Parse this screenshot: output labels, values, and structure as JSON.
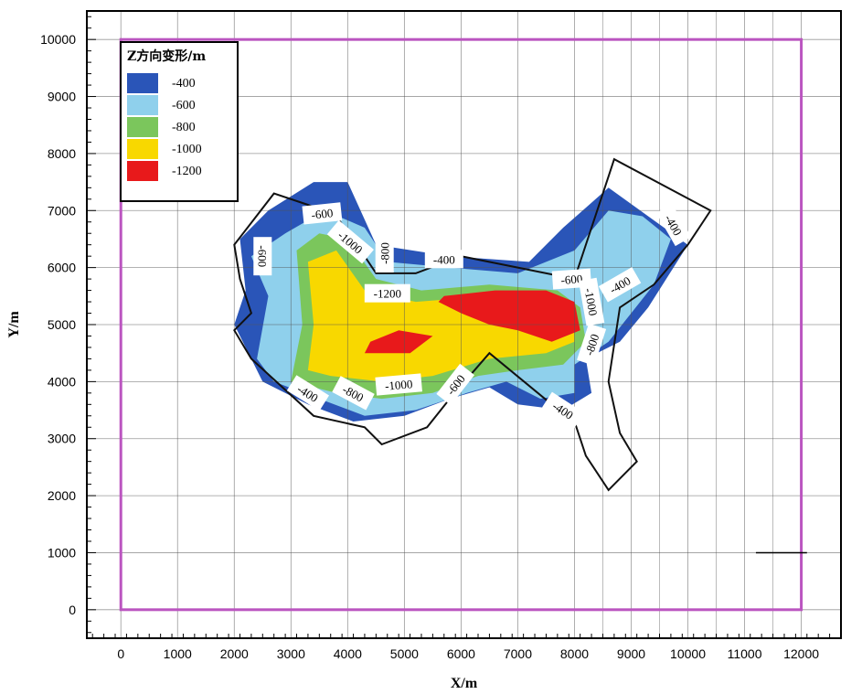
{
  "chart_data": {
    "type": "contour",
    "xlabel": "X/m",
    "ylabel": "Y/m",
    "xlim": [
      -600,
      12700
    ],
    "ylim": [
      -500,
      10500
    ],
    "xticks": [
      0,
      1000,
      2000,
      3000,
      4000,
      5000,
      6000,
      7000,
      8000,
      9000,
      10000,
      11000,
      12000
    ],
    "yticks": [
      0,
      1000,
      2000,
      3000,
      4000,
      5000,
      6000,
      7000,
      8000,
      9000,
      10000
    ],
    "grid": true,
    "legend": {
      "title": "Z方向变形/m",
      "position": "top-left",
      "entries": [
        {
          "label": "-400",
          "color": "#2a55b8"
        },
        {
          "label": "-600",
          "color": "#8fd0ec"
        },
        {
          "label": "-800",
          "color": "#7bc65c"
        },
        {
          "label": "-1000",
          "color": "#f8d800"
        },
        {
          "label": "-1200",
          "color": "#e8191b"
        }
      ]
    },
    "boundary_rect": {
      "x": [
        0,
        12000
      ],
      "y": [
        0,
        10000
      ],
      "color": "#bb55c0"
    },
    "outline_polygon": [
      [
        2000,
        4900
      ],
      [
        2300,
        5200
      ],
      [
        2100,
        5800
      ],
      [
        2000,
        6400
      ],
      [
        2700,
        7300
      ],
      [
        3300,
        7100
      ],
      [
        3800,
        6900
      ],
      [
        4300,
        6200
      ],
      [
        4500,
        5900
      ],
      [
        5200,
        5900
      ],
      [
        6000,
        6200
      ],
      [
        7000,
        6000
      ],
      [
        8000,
        5800
      ],
      [
        8600,
        7600
      ],
      [
        8700,
        7900
      ],
      [
        10400,
        7000
      ],
      [
        10000,
        6400
      ],
      [
        9400,
        5700
      ],
      [
        8800,
        5300
      ],
      [
        8600,
        4000
      ],
      [
        8800,
        3100
      ],
      [
        9100,
        2600
      ],
      [
        8600,
        2100
      ],
      [
        8200,
        2700
      ],
      [
        8000,
        3300
      ],
      [
        7600,
        3600
      ],
      [
        6500,
        4500
      ],
      [
        5800,
        3700
      ],
      [
        5400,
        3200
      ],
      [
        4600,
        2900
      ],
      [
        4300,
        3200
      ],
      [
        3400,
        3400
      ],
      [
        2300,
        4400
      ]
    ],
    "regions": [
      {
        "level": "-400",
        "color": "#2a55b8",
        "polygon": [
          [
            2000,
            5000
          ],
          [
            2200,
            5600
          ],
          [
            2100,
            6500
          ],
          [
            2600,
            7000
          ],
          [
            3400,
            7500
          ],
          [
            4000,
            7500
          ],
          [
            4500,
            6400
          ],
          [
            5800,
            6200
          ],
          [
            7200,
            6100
          ],
          [
            7800,
            6700
          ],
          [
            8600,
            7400
          ],
          [
            9300,
            6900
          ],
          [
            10000,
            6400
          ],
          [
            9300,
            5300
          ],
          [
            8800,
            4700
          ],
          [
            8200,
            4400
          ],
          [
            8300,
            3800
          ],
          [
            7800,
            3500
          ],
          [
            7000,
            3600
          ],
          [
            6500,
            3900
          ],
          [
            5800,
            3700
          ],
          [
            5000,
            3400
          ],
          [
            4100,
            3300
          ],
          [
            3300,
            3600
          ],
          [
            2500,
            4000
          ]
        ]
      },
      {
        "level": "-600",
        "color": "#8fd0ec",
        "polygon": [
          [
            2400,
            4400
          ],
          [
            2600,
            5500
          ],
          [
            2300,
            6200
          ],
          [
            2900,
            6600
          ],
          [
            3600,
            7000
          ],
          [
            4300,
            6700
          ],
          [
            4700,
            6100
          ],
          [
            5800,
            6000
          ],
          [
            7000,
            5900
          ],
          [
            8000,
            6300
          ],
          [
            8600,
            7000
          ],
          [
            9200,
            6900
          ],
          [
            9700,
            6500
          ],
          [
            9400,
            5700
          ],
          [
            8600,
            4700
          ],
          [
            8000,
            4300
          ],
          [
            8000,
            3800
          ],
          [
            7400,
            3700
          ],
          [
            6800,
            4000
          ],
          [
            6100,
            3800
          ],
          [
            5200,
            3500
          ],
          [
            4300,
            3400
          ],
          [
            3500,
            3700
          ],
          [
            2700,
            4000
          ]
        ]
      },
      {
        "level": "-800",
        "color": "#7bc65c",
        "polygon": [
          [
            3000,
            4000
          ],
          [
            3200,
            5000
          ],
          [
            3100,
            6300
          ],
          [
            3500,
            6600
          ],
          [
            4000,
            6500
          ],
          [
            4500,
            5800
          ],
          [
            5300,
            5600
          ],
          [
            6500,
            5700
          ],
          [
            7700,
            5600
          ],
          [
            8100,
            5300
          ],
          [
            8200,
            4700
          ],
          [
            7800,
            4300
          ],
          [
            7000,
            4200
          ],
          [
            6300,
            4100
          ],
          [
            5500,
            3800
          ],
          [
            4600,
            3700
          ],
          [
            3800,
            3800
          ]
        ]
      },
      {
        "level": "-1000",
        "color": "#f8d800",
        "polygon": [
          [
            3300,
            4200
          ],
          [
            3400,
            5000
          ],
          [
            3300,
            6100
          ],
          [
            3800,
            6300
          ],
          [
            4300,
            5600
          ],
          [
            5200,
            5400
          ],
          [
            6500,
            5500
          ],
          [
            7600,
            5500
          ],
          [
            8000,
            5200
          ],
          [
            8000,
            4700
          ],
          [
            7500,
            4500
          ],
          [
            6500,
            4400
          ],
          [
            5500,
            4100
          ],
          [
            4600,
            4000
          ],
          [
            3700,
            4100
          ]
        ]
      },
      {
        "level": "-1200",
        "color": "#e8191b",
        "polygon": [
          [
            5700,
            5500
          ],
          [
            6600,
            5600
          ],
          [
            7500,
            5600
          ],
          [
            8000,
            5400
          ],
          [
            8100,
            4900
          ],
          [
            7600,
            4700
          ],
          [
            7000,
            4900
          ],
          [
            6500,
            5000
          ],
          [
            6000,
            5200
          ],
          [
            5600,
            5400
          ]
        ]
      },
      {
        "level": "-1200",
        "color": "#e8191b",
        "polygon": [
          [
            4400,
            4700
          ],
          [
            4900,
            4900
          ],
          [
            5500,
            4800
          ],
          [
            5100,
            4500
          ],
          [
            4600,
            4500
          ],
          [
            4300,
            4500
          ]
        ]
      }
    ],
    "contour_labels": [
      {
        "text": "-600",
        "x": 3550,
        "y": 6950,
        "angle": -6
      },
      {
        "text": "-1000",
        "x": 4050,
        "y": 6450,
        "angle": 40
      },
      {
        "text": "-800",
        "x": 4650,
        "y": 6250,
        "angle": -90
      },
      {
        "text": "-400",
        "x": 5700,
        "y": 6150,
        "angle": 0
      },
      {
        "text": "-600",
        "x": 7950,
        "y": 5800,
        "angle": -4
      },
      {
        "text": "-400",
        "x": 8800,
        "y": 5700,
        "angle": -30
      },
      {
        "text": "-1000",
        "x": 8300,
        "y": 5400,
        "angle": 80
      },
      {
        "text": "-1200",
        "x": 4700,
        "y": 5550,
        "angle": 0
      },
      {
        "text": "-800",
        "x": 8300,
        "y": 4650,
        "angle": -72
      },
      {
        "text": "-400",
        "x": 9750,
        "y": 6750,
        "angle": 60
      },
      {
        "text": "-600",
        "x": 2500,
        "y": 6200,
        "angle": 90
      },
      {
        "text": "-400",
        "x": 3300,
        "y": 3800,
        "angle": 32
      },
      {
        "text": "-800",
        "x": 4100,
        "y": 3800,
        "angle": 28
      },
      {
        "text": "-1000",
        "x": 4900,
        "y": 3950,
        "angle": -5
      },
      {
        "text": "-600",
        "x": 5900,
        "y": 3950,
        "angle": -52
      },
      {
        "text": "-400",
        "x": 7800,
        "y": 3500,
        "angle": 33
      }
    ],
    "annotation_segment": {
      "x": [
        11200,
        12100
      ],
      "y": [
        1000,
        1000
      ]
    }
  }
}
